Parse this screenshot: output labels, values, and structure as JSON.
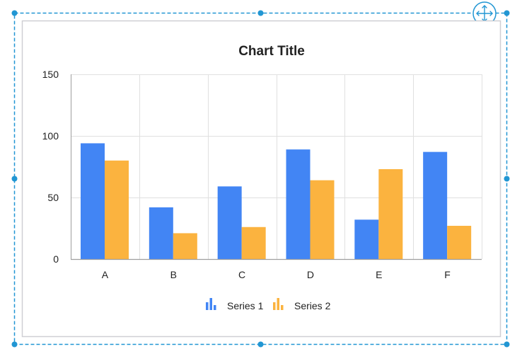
{
  "colors": {
    "selection": "#2196d3",
    "frame": "#cfcfd4",
    "grid": "#e0e0e0",
    "axis": "#9e9e9e",
    "text": "#222222",
    "series_1": "#4285f4",
    "series_2": "#fbb33f"
  },
  "icons": {
    "move_handle": "move-arrows-icon",
    "legend_series": "bar-chart-icon"
  },
  "chart_data": {
    "type": "bar",
    "title": "Chart Title",
    "xlabel": "",
    "ylabel": "",
    "categories": [
      "A",
      "B",
      "C",
      "D",
      "E",
      "F"
    ],
    "series": [
      {
        "name": "Series 1",
        "values": [
          94,
          42,
          59,
          89,
          32,
          87
        ]
      },
      {
        "name": "Series 2",
        "values": [
          80,
          21,
          26,
          64,
          73,
          27
        ]
      }
    ],
    "ylim": [
      0,
      150
    ],
    "yticks": [
      0,
      50,
      100,
      150
    ],
    "grid": true,
    "legend": "bottom"
  }
}
